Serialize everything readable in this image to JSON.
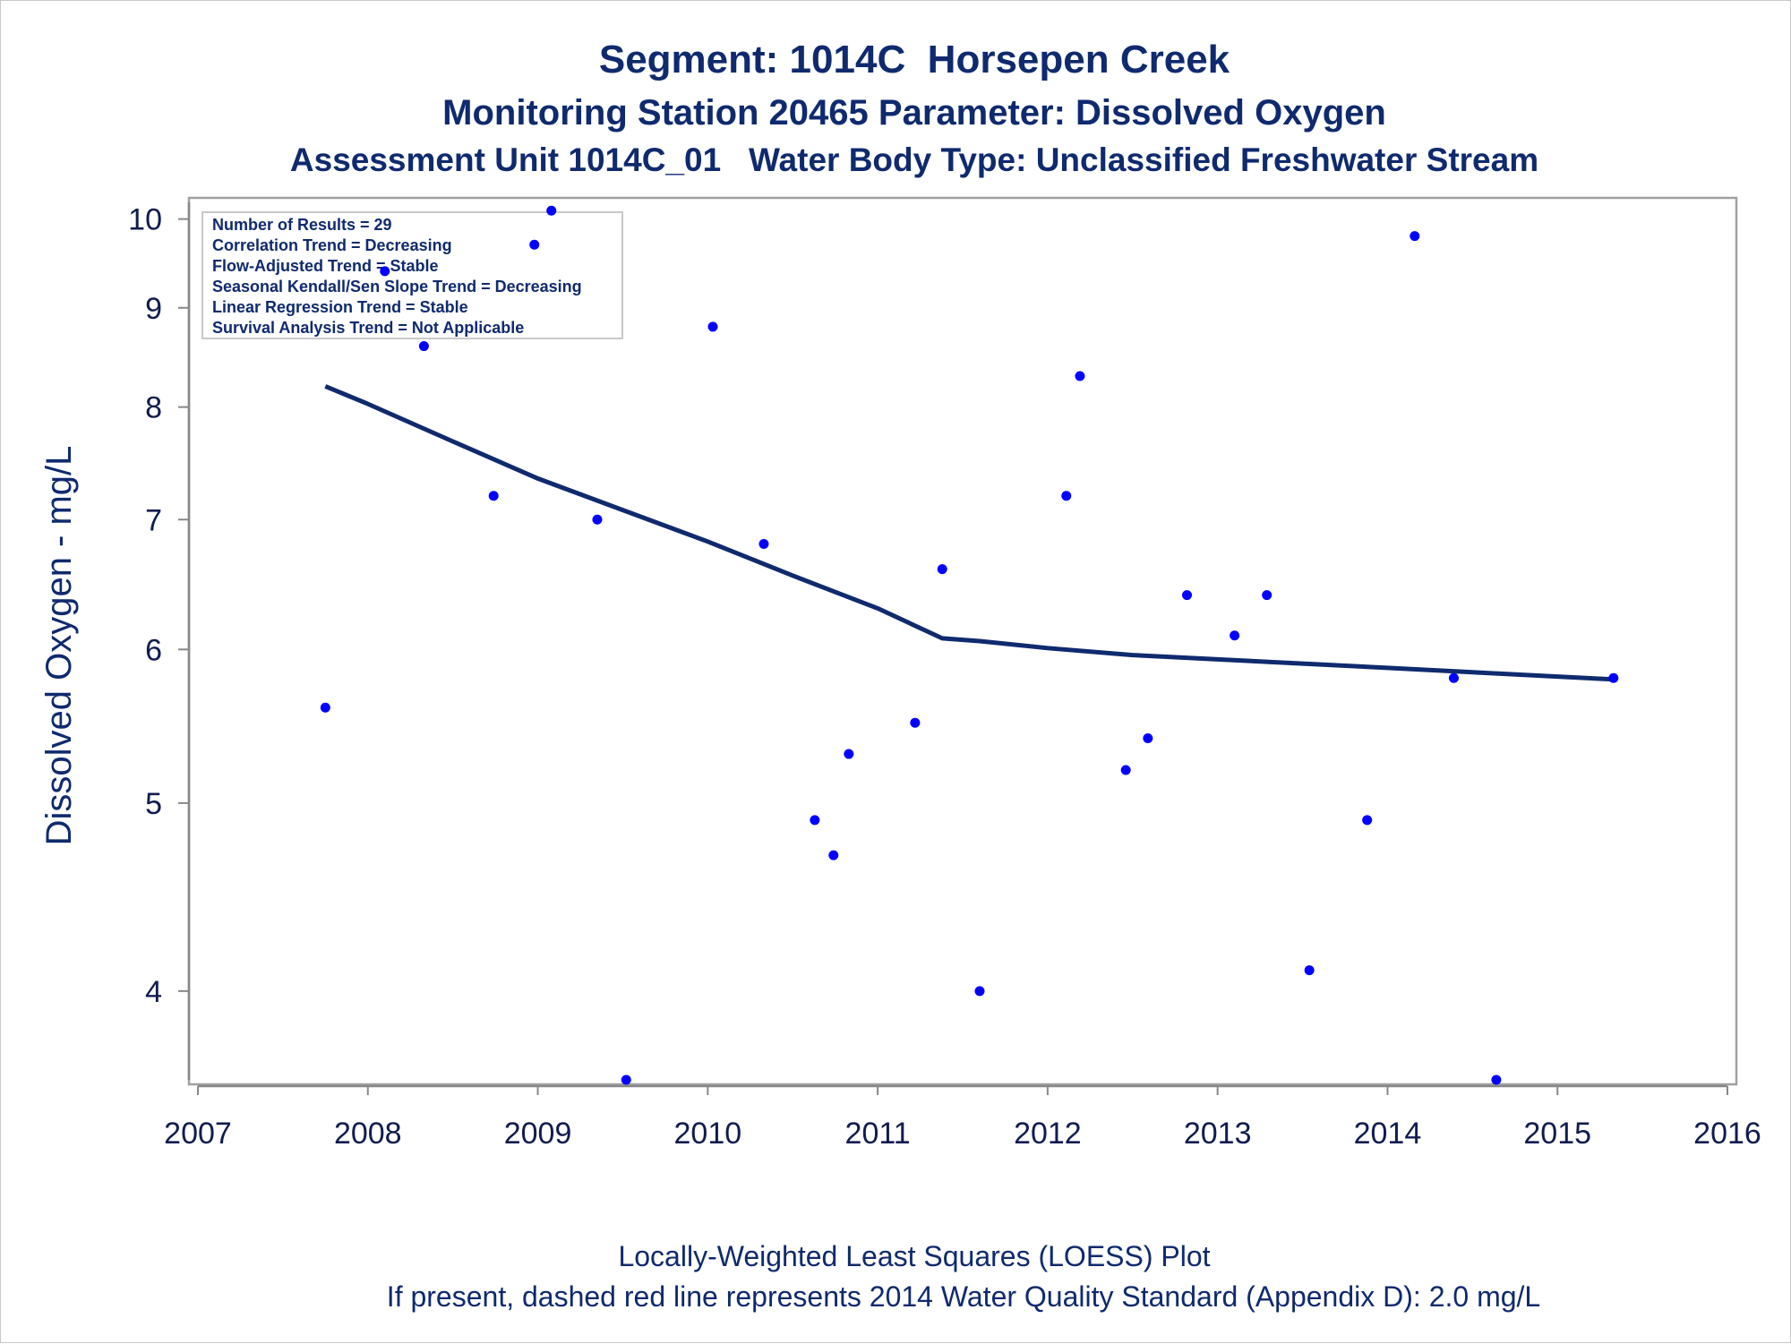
{
  "chart_data": {
    "type": "scatter",
    "title": "Segment: 1014C  Horsepen Creek",
    "subtitle": "Monitoring Station 20465 Parameter: Dissolved Oxygen",
    "subtitle2": "Assessment Unit 1014C_01   Water Body Type: Unclassified Freshwater Stream",
    "ylabel": "Dissolved Oxygen - mg/L",
    "xlabel": "",
    "y_scale": "log",
    "xlim": [
      2007,
      2016
    ],
    "ylim": [
      3.6,
      10.2
    ],
    "x_ticks": [
      "2007",
      "2008",
      "2009",
      "2010",
      "2011",
      "2012",
      "2013",
      "2014",
      "2015",
      "2016"
    ],
    "y_ticks": [
      "4",
      "5",
      "6",
      "7",
      "8",
      "9",
      "10"
    ],
    "grid": false,
    "legend_position": "top-left",
    "annotations": [
      "Number of Results = 29",
      "Correlation Trend = Decreasing",
      "Flow-Adjusted Trend = Stable",
      "Seasonal Kendall/Sen Slope Trend = Decreasing",
      "Linear Regression Trend = Stable",
      "Survival Analysis Trend = Not Applicable"
    ],
    "footnotes": [
      "Locally-Weighted Least Squares (LOESS) Plot",
      "If present, dashed red line represents 2014 Water Quality Standard (Appendix D): 2.0 mg/L"
    ],
    "series": [
      {
        "type": "scatter",
        "color": "#0000ff",
        "points": [
          {
            "x": 2007.75,
            "y": 5.6
          },
          {
            "x": 2008.1,
            "y": 9.4
          },
          {
            "x": 2008.33,
            "y": 8.6
          },
          {
            "x": 2008.74,
            "y": 7.2
          },
          {
            "x": 2008.98,
            "y": 9.7
          },
          {
            "x": 2009.08,
            "y": 10.1
          },
          {
            "x": 2009.35,
            "y": 7.0
          },
          {
            "x": 2009.52,
            "y": 3.6
          },
          {
            "x": 2010.03,
            "y": 8.8
          },
          {
            "x": 2010.33,
            "y": 6.8
          },
          {
            "x": 2010.63,
            "y": 4.9
          },
          {
            "x": 2010.74,
            "y": 4.7
          },
          {
            "x": 2010.83,
            "y": 5.3
          },
          {
            "x": 2011.22,
            "y": 5.5
          },
          {
            "x": 2011.38,
            "y": 6.6
          },
          {
            "x": 2011.6,
            "y": 4.0
          },
          {
            "x": 2012.11,
            "y": 7.2
          },
          {
            "x": 2012.19,
            "y": 8.3
          },
          {
            "x": 2012.46,
            "y": 5.2
          },
          {
            "x": 2012.59,
            "y": 5.4
          },
          {
            "x": 2012.82,
            "y": 6.4
          },
          {
            "x": 2013.1,
            "y": 6.1
          },
          {
            "x": 2013.29,
            "y": 6.4
          },
          {
            "x": 2013.54,
            "y": 4.1
          },
          {
            "x": 2013.88,
            "y": 4.9
          },
          {
            "x": 2014.16,
            "y": 9.8
          },
          {
            "x": 2014.39,
            "y": 5.8
          },
          {
            "x": 2014.64,
            "y": 3.6
          },
          {
            "x": 2015.33,
            "y": 5.8
          }
        ]
      },
      {
        "type": "line",
        "color": "#0f2a6e",
        "points": [
          {
            "x": 2007.75,
            "y": 8.2
          },
          {
            "x": 2008.0,
            "y": 8.03
          },
          {
            "x": 2008.5,
            "y": 7.68
          },
          {
            "x": 2009.0,
            "y": 7.35
          },
          {
            "x": 2009.5,
            "y": 7.08
          },
          {
            "x": 2010.0,
            "y": 6.82
          },
          {
            "x": 2010.5,
            "y": 6.55
          },
          {
            "x": 2011.0,
            "y": 6.3
          },
          {
            "x": 2011.38,
            "y": 6.08
          },
          {
            "x": 2011.6,
            "y": 6.06
          },
          {
            "x": 2012.0,
            "y": 6.01
          },
          {
            "x": 2012.5,
            "y": 5.96
          },
          {
            "x": 2013.0,
            "y": 5.93
          },
          {
            "x": 2013.5,
            "y": 5.9
          },
          {
            "x": 2014.0,
            "y": 5.87
          },
          {
            "x": 2014.5,
            "y": 5.84
          },
          {
            "x": 2015.0,
            "y": 5.81
          },
          {
            "x": 2015.33,
            "y": 5.79
          }
        ]
      }
    ]
  }
}
